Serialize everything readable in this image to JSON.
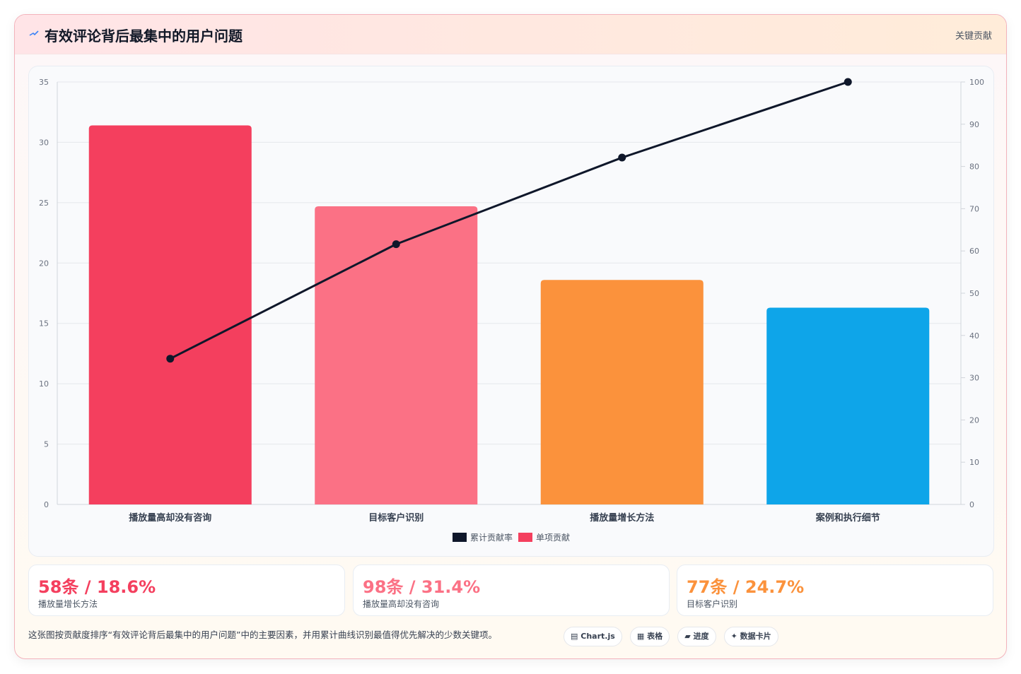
{
  "header": {
    "title": "有效评论背后最集中的用户问题",
    "tag": "关键贡献"
  },
  "chart_data": {
    "type": "bar",
    "categories": [
      "播放量高却没有咨询",
      "目标客户识别",
      "播放量增长方法",
      "案例和执行细节"
    ],
    "series": [
      {
        "name": "单项贡献",
        "type": "bar",
        "axis": "left",
        "values": [
          31.4,
          24.7,
          18.6,
          16.3
        ],
        "colors": [
          "#f43f5e",
          "#fb7185",
          "#fb923c",
          "#0ea5e9"
        ]
      },
      {
        "name": "累计贡献率",
        "type": "line",
        "axis": "right",
        "values": [
          34.5,
          61.6,
          82.1,
          100
        ],
        "color": "#0f172a"
      }
    ],
    "y_left": {
      "min": 0,
      "max": 35,
      "ticks": [
        0,
        5,
        10,
        15,
        20,
        25,
        30,
        35
      ]
    },
    "y_right": {
      "min": 0,
      "max": 100,
      "ticks": [
        0,
        10,
        20,
        30,
        40,
        50,
        60,
        70,
        80,
        90,
        100
      ]
    },
    "legend": [
      {
        "label": "累计贡献率",
        "color": "#0f172a"
      },
      {
        "label": "单项贡献",
        "color": "#f43f5e"
      }
    ],
    "legend_position": "bottom",
    "grid": true
  },
  "kpis": [
    {
      "value": "58条 / 18.6%",
      "label": "播放量增长方法",
      "color": "#f43f5e"
    },
    {
      "value": "98条 / 31.4%",
      "label": "播放量高却没有咨询",
      "color": "#fb7185"
    },
    {
      "value": "77条 / 24.7%",
      "label": "目标客户识别",
      "color": "#fb923c"
    }
  ],
  "footer": {
    "note": "这张图按贡献度排序“有效评论背后最集中的用户问题”中的主要因素，并用累计曲线识别最值得优先解决的少数关键项。",
    "chips": [
      {
        "icon": "▤",
        "label": "Chart.js"
      },
      {
        "icon": "▦",
        "label": "表格"
      },
      {
        "icon": "▰",
        "label": "进度"
      },
      {
        "icon": "✦",
        "label": "数据卡片"
      }
    ]
  }
}
